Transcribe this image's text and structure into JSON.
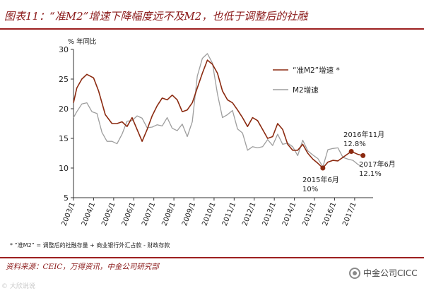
{
  "header": {
    "title": "图表11：“准M2”增速下降幅度远不及M2，也低于调整后的社融"
  },
  "footer": {
    "note": "* “准M2” = 调整后的社融存量 + 商业银行外汇占款 - 财政存款",
    "source": "资料来源：CEIC，万得资讯，中金公司研究部",
    "brand": "中金公司CICC",
    "watermark": "© 大欣说说"
  },
  "colors": {
    "quasi_m2": "#8b2a10",
    "m2": "#9e9e9e",
    "accent": "#8b1a1a"
  },
  "chart_data": {
    "type": "line",
    "ylabel": "% 年同比",
    "ylim": [
      5,
      30
    ],
    "yticks": [
      5,
      10,
      15,
      20,
      25,
      30
    ],
    "x_tick_labels": [
      "2003/1",
      "2004/1",
      "2005/1",
      "2006/1",
      "2007/1",
      "2008/1",
      "2009/1",
      "2010/1",
      "2011/1",
      "2012/1",
      "2013/1",
      "2014/1",
      "2015/1",
      "2016/1",
      "2017/1"
    ],
    "grid": false,
    "legend_position": "top-right",
    "series": [
      {
        "name": "“准M2”增速 *",
        "color": "#8b2a10",
        "points": [
          [
            "2003/1",
            21
          ],
          [
            "2003/3",
            23.5
          ],
          [
            "2003/6",
            25
          ],
          [
            "2003/9",
            25.8
          ],
          [
            "2004/1",
            25.2
          ],
          [
            "2004/4",
            23
          ],
          [
            "2004/8",
            19
          ],
          [
            "2004/12",
            17.5
          ],
          [
            "2005/3",
            17.5
          ],
          [
            "2005/6",
            17.8
          ],
          [
            "2005/9",
            17
          ],
          [
            "2005/12",
            18.5
          ],
          [
            "2006/3",
            16.5
          ],
          [
            "2006/6",
            14.5
          ],
          [
            "2006/9",
            16.5
          ],
          [
            "2006/12",
            18.8
          ],
          [
            "2007/3",
            20.5
          ],
          [
            "2007/6",
            21.8
          ],
          [
            "2007/9",
            21.5
          ],
          [
            "2007/12",
            22.3
          ],
          [
            "2008/3",
            21.5
          ],
          [
            "2008/6",
            19.5
          ],
          [
            "2008/9",
            19.8
          ],
          [
            "2008/12",
            21
          ],
          [
            "2009/3",
            23.5
          ],
          [
            "2009/6",
            26
          ],
          [
            "2009/9",
            28.2
          ],
          [
            "2009/12",
            27.5
          ],
          [
            "2010/3",
            26
          ],
          [
            "2010/6",
            23
          ],
          [
            "2010/9",
            21.5
          ],
          [
            "2010/12",
            21
          ],
          [
            "2011/3",
            19.8
          ],
          [
            "2011/6",
            18.5
          ],
          [
            "2011/9",
            17
          ],
          [
            "2011/12",
            18.5
          ],
          [
            "2012/3",
            18
          ],
          [
            "2012/6",
            16.5
          ],
          [
            "2012/9",
            15
          ],
          [
            "2012/12",
            15.3
          ],
          [
            "2013/3",
            17.5
          ],
          [
            "2013/6",
            16.5
          ],
          [
            "2013/9",
            14
          ],
          [
            "2013/12",
            13
          ],
          [
            "2014/3",
            13
          ],
          [
            "2014/6",
            14
          ],
          [
            "2014/9",
            12.5
          ],
          [
            "2014/12",
            11.5
          ],
          [
            "2015/3",
            10.8
          ],
          [
            "2015/6",
            10
          ],
          [
            "2015/9",
            11
          ],
          [
            "2015/12",
            11.3
          ],
          [
            "2016/3",
            11.2
          ],
          [
            "2016/6",
            11.8
          ],
          [
            "2016/11",
            12.8
          ],
          [
            "2017/3",
            12.3
          ],
          [
            "2017/6",
            12.1
          ]
        ]
      },
      {
        "name": "M2增速",
        "color": "#9e9e9e",
        "points": [
          [
            "2003/1",
            18.5
          ],
          [
            "2003/3",
            19.5
          ],
          [
            "2003/6",
            20.8
          ],
          [
            "2003/9",
            21
          ],
          [
            "2003/12",
            19.5
          ],
          [
            "2004/3",
            19.2
          ],
          [
            "2004/6",
            16
          ],
          [
            "2004/9",
            14.5
          ],
          [
            "2004/12",
            14.5
          ],
          [
            "2005/3",
            14.1
          ],
          [
            "2005/6",
            15.7
          ],
          [
            "2005/9",
            17.9
          ],
          [
            "2005/12",
            18
          ],
          [
            "2006/3",
            18.8
          ],
          [
            "2006/6",
            18.4
          ],
          [
            "2006/9",
            16.8
          ],
          [
            "2006/12",
            16.9
          ],
          [
            "2007/3",
            17.3
          ],
          [
            "2007/6",
            17.1
          ],
          [
            "2007/9",
            18.5
          ],
          [
            "2007/12",
            16.7
          ],
          [
            "2008/3",
            16.3
          ],
          [
            "2008/6",
            17.4
          ],
          [
            "2008/9",
            15.3
          ],
          [
            "2008/12",
            17.8
          ],
          [
            "2009/3",
            25.5
          ],
          [
            "2009/6",
            28.5
          ],
          [
            "2009/9",
            29.3
          ],
          [
            "2009/12",
            27.7
          ],
          [
            "2010/3",
            22.5
          ],
          [
            "2010/6",
            18.5
          ],
          [
            "2010/9",
            19
          ],
          [
            "2010/12",
            19.7
          ],
          [
            "2011/3",
            16.6
          ],
          [
            "2011/6",
            15.9
          ],
          [
            "2011/9",
            13
          ],
          [
            "2011/12",
            13.6
          ],
          [
            "2012/3",
            13.4
          ],
          [
            "2012/6",
            13.6
          ],
          [
            "2012/9",
            14.8
          ],
          [
            "2012/12",
            13.8
          ],
          [
            "2013/3",
            15.7
          ],
          [
            "2013/6",
            14
          ],
          [
            "2013/9",
            14.2
          ],
          [
            "2013/12",
            13.6
          ],
          [
            "2014/3",
            12.1
          ],
          [
            "2014/6",
            14.7
          ],
          [
            "2014/9",
            12.9
          ],
          [
            "2014/12",
            12.2
          ],
          [
            "2015/3",
            11.6
          ],
          [
            "2015/6",
            10.2
          ],
          [
            "2015/9",
            13.1
          ],
          [
            "2015/12",
            13.3
          ],
          [
            "2016/3",
            13.4
          ],
          [
            "2016/6",
            11.8
          ],
          [
            "2016/9",
            11.5
          ],
          [
            "2016/12",
            11.3
          ],
          [
            "2017/3",
            10.6
          ],
          [
            "2017/6",
            10.1
          ]
        ]
      }
    ],
    "annotations": [
      {
        "date": "2015/6",
        "value": 10,
        "line1": "2015年6月",
        "line2": "10%"
      },
      {
        "date": "2016/11",
        "value": 12.8,
        "line1": "2016年11月",
        "line2": "12.8%"
      },
      {
        "date": "2017/6",
        "value": 12.1,
        "line1": "2017年6月",
        "line2": "12.1%"
      }
    ]
  }
}
